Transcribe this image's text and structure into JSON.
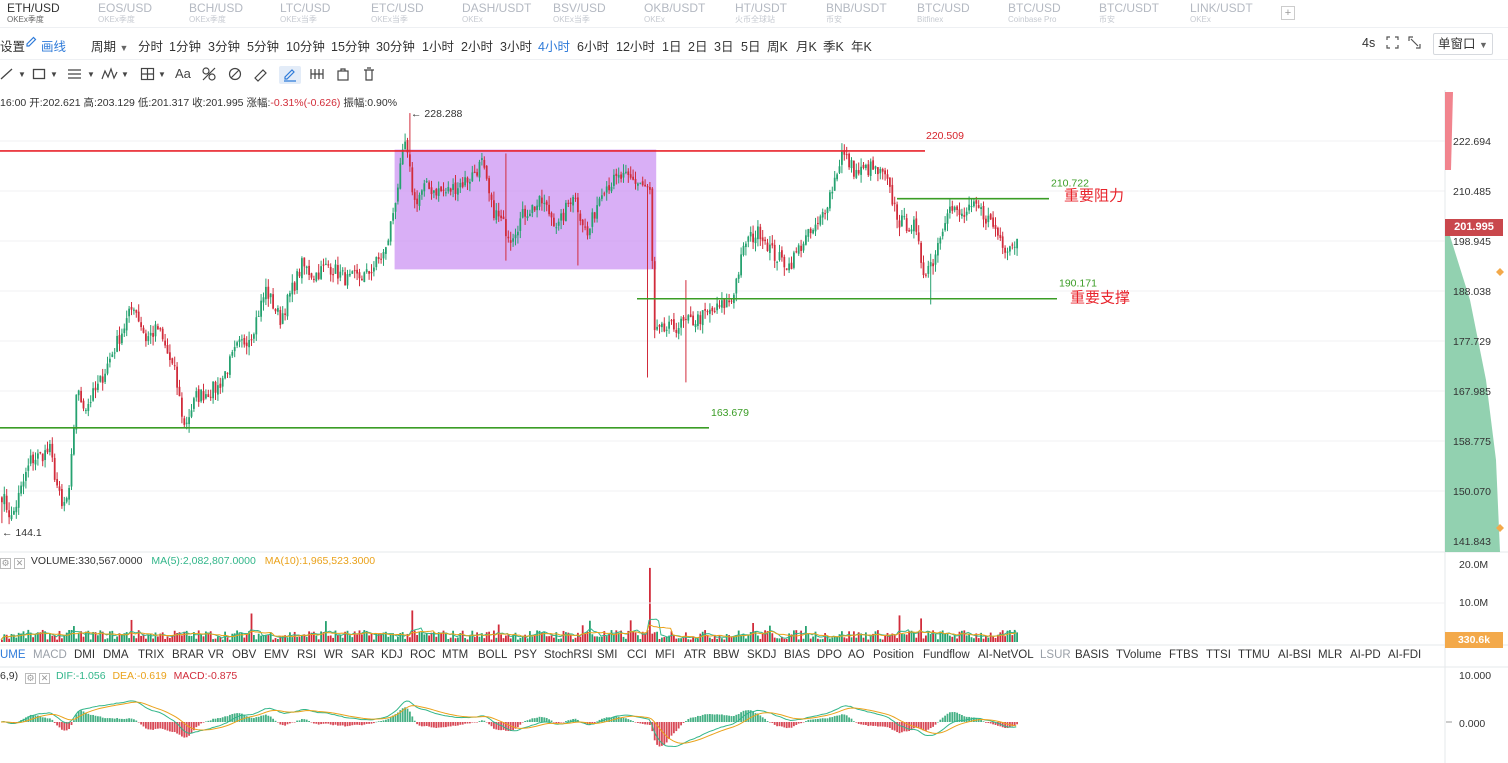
{
  "symbol_tabs": [
    {
      "symbol": "ETH/USD",
      "exchange": "OKEx季度",
      "active": true
    },
    {
      "symbol": "EOS/USD",
      "exchange": "OKEx季度"
    },
    {
      "symbol": "BCH/USD",
      "exchange": "OKEx季度"
    },
    {
      "symbol": "LTC/USD",
      "exchange": "OKEx当季"
    },
    {
      "symbol": "ETC/USD",
      "exchange": "OKEx当季"
    },
    {
      "symbol": "DASH/USDT",
      "exchange": "OKEx"
    },
    {
      "symbol": "BSV/USD",
      "exchange": "OKEx当季"
    },
    {
      "symbol": "OKB/USDT",
      "exchange": "OKEx"
    },
    {
      "symbol": "HT/USDT",
      "exchange": "火币全球站"
    },
    {
      "symbol": "BNB/USDT",
      "exchange": "币安"
    },
    {
      "symbol": "BTC/USD",
      "exchange": "Bitfinex"
    },
    {
      "symbol": "BTC/USD",
      "exchange": "Coinbase Pro"
    },
    {
      "symbol": "BTC/USDT",
      "exchange": "币安"
    },
    {
      "symbol": "LINK/USDT",
      "exchange": "OKEx"
    }
  ],
  "add_tab_label": "+",
  "toolbar": {
    "settings_label": "设置",
    "draw_label": "画线",
    "period_label": "周期",
    "intervals": [
      "分时",
      "1分钟",
      "3分钟",
      "5分钟",
      "10分钟",
      "15分钟",
      "30分钟",
      "1小时",
      "2小时",
      "3小时",
      "4小时",
      "6小时",
      "12小时",
      "1日",
      "2日",
      "3日",
      "5日",
      "周K",
      "月K",
      "季K",
      "年K"
    ],
    "active_interval": "4小时",
    "refresh_label": "4s",
    "window_mode_label": "单窗口"
  },
  "draw_tools": {
    "text_tool_label": "Aa"
  },
  "ohlc": {
    "time": "16:00",
    "open_label": "开:",
    "open": "202.621",
    "high_label": "高:",
    "high": "203.129",
    "low_label": "低:",
    "low": "201.317",
    "close_label": "收:",
    "close": "201.995",
    "change_label": "涨幅:",
    "change": "-0.31%(-0.626)",
    "amplitude_label": "振幅:",
    "amplitude": "0.90%"
  },
  "price_axis": {
    "ticks": [
      "222.694",
      "210.485",
      "198.945",
      "188.038",
      "177.729",
      "167.985",
      "158.775",
      "150.070",
      "141.843"
    ],
    "last_price": "201.995"
  },
  "annotations": {
    "high_marker": "228.288",
    "low_marker": "144.1",
    "resistance_top": "220.509",
    "resistance": "210.722",
    "resistance_label": "重要阻力",
    "support": "190.171",
    "support_label": "重要支撑",
    "support_low": "163.679"
  },
  "colors": {
    "up": "#26a270",
    "down": "#d12c3b",
    "box": "#c98df2",
    "resistance_line": "#e8232b",
    "support_line": "#3b9d26"
  },
  "volume": {
    "label": "VOLUME:330,567.0000",
    "ma5": "MA(5):2,082,807.0000",
    "ma10": "MA(10):1,965,523.3000",
    "ticks": [
      "20.0M",
      "10.0M"
    ],
    "last": "330.6k"
  },
  "indicator_tabs": {
    "tabs": [
      "UME",
      "MACD",
      "DMI",
      "DMA",
      "TRIX",
      "BRAR",
      "VR",
      "OBV",
      "EMV",
      "RSI",
      "WR",
      "SAR",
      "KDJ",
      "ROC",
      "MTM",
      "BOLL",
      "PSY",
      "StochRSI",
      "SMI",
      "CCI",
      "MFI",
      "ATR",
      "BBW",
      "SKDJ",
      "BIAS",
      "DPO",
      "AO",
      "Position",
      "Fundflow",
      "AI-NetVOL",
      "LSUR",
      "BASIS",
      "TVolume",
      "FTBS",
      "TTSI",
      "TTMU",
      "AI-BSI",
      "MLR",
      "AI-PD",
      "AI-FDI"
    ],
    "active": "UME"
  },
  "macd": {
    "params": "6,9)",
    "dif": "DIF:-1.056",
    "dea": "DEA:-0.619",
    "macd": "MACD:-0.875",
    "ticks": [
      "10.000",
      "0.000"
    ]
  },
  "chart_data": {
    "type": "candlestick",
    "symbol": "ETH/USD",
    "interval": "4小时",
    "y_range": [
      139,
      232
    ],
    "anchors": [
      [
        0,
        150
      ],
      [
        4,
        145
      ],
      [
        12,
        157
      ],
      [
        20,
        159
      ],
      [
        25,
        147
      ],
      [
        28,
        150
      ],
      [
        31,
        171
      ],
      [
        35,
        168
      ],
      [
        40,
        172
      ],
      [
        46,
        179
      ],
      [
        55,
        189
      ],
      [
        60,
        182
      ],
      [
        65,
        184
      ],
      [
        72,
        175
      ],
      [
        76,
        164
      ],
      [
        81,
        170
      ],
      [
        90,
        172
      ],
      [
        98,
        180
      ],
      [
        104,
        183
      ],
      [
        110,
        192
      ],
      [
        116,
        186
      ],
      [
        125,
        197
      ],
      [
        130,
        195
      ],
      [
        136,
        197
      ],
      [
        144,
        194
      ],
      [
        152,
        195
      ],
      [
        160,
        200
      ],
      [
        163,
        208
      ],
      [
        168,
        222
      ],
      [
        172,
        210
      ],
      [
        176,
        213
      ],
      [
        185,
        212
      ],
      [
        195,
        215
      ],
      [
        200,
        218
      ],
      [
        204,
        209
      ],
      [
        212,
        203
      ],
      [
        218,
        208
      ],
      [
        225,
        210
      ],
      [
        232,
        205
      ],
      [
        238,
        212
      ],
      [
        244,
        203
      ],
      [
        250,
        213
      ],
      [
        258,
        215
      ],
      [
        266,
        214
      ],
      [
        270,
        212
      ],
      [
        272,
        183
      ],
      [
        278,
        184
      ],
      [
        284,
        185
      ],
      [
        290,
        186
      ],
      [
        298,
        188
      ],
      [
        304,
        190
      ],
      [
        310,
        202
      ],
      [
        316,
        204
      ],
      [
        322,
        199
      ],
      [
        328,
        197
      ],
      [
        334,
        202
      ],
      [
        340,
        205
      ],
      [
        346,
        213
      ],
      [
        350,
        220
      ],
      [
        356,
        216
      ],
      [
        362,
        217
      ],
      [
        368,
        215
      ],
      [
        374,
        206
      ],
      [
        380,
        205
      ],
      [
        384,
        196
      ],
      [
        388,
        198
      ],
      [
        394,
        209
      ],
      [
        400,
        207
      ],
      [
        406,
        209
      ],
      [
        412,
        206
      ],
      [
        418,
        201
      ],
      [
        423,
        202
      ]
    ],
    "spikes": [
      [
        0,
        "low",
        144.1
      ],
      [
        170,
        "high",
        228.288
      ],
      [
        269,
        "low",
        174
      ],
      [
        285,
        "low",
        173
      ],
      [
        285,
        "high",
        194
      ],
      [
        210,
        "high",
        220
      ],
      [
        210,
        "low",
        198
      ],
      [
        240,
        "low",
        197
      ],
      [
        387,
        "low",
        189
      ]
    ],
    "volume_spikes": [
      [
        270,
        19.5
      ],
      [
        171,
        8.3
      ],
      [
        104,
        7.5
      ],
      [
        374,
        7.0
      ],
      [
        383,
        6.2
      ],
      [
        54,
        5.8
      ],
      [
        262,
        5.7
      ],
      [
        245,
        5.6
      ],
      [
        135,
        5.5
      ],
      [
        313,
        5.0
      ],
      [
        320,
        4.3
      ],
      [
        207,
        4.6
      ],
      [
        242,
        4.4
      ],
      [
        335,
        4.2
      ],
      [
        30,
        4.2
      ]
    ],
    "horizontal_levels": [
      220.509,
      210.722,
      190.171,
      163.679
    ],
    "consolidation_box": {
      "from_index": 164,
      "to_index": 273,
      "top": 220.8,
      "bottom": 196.2
    }
  }
}
